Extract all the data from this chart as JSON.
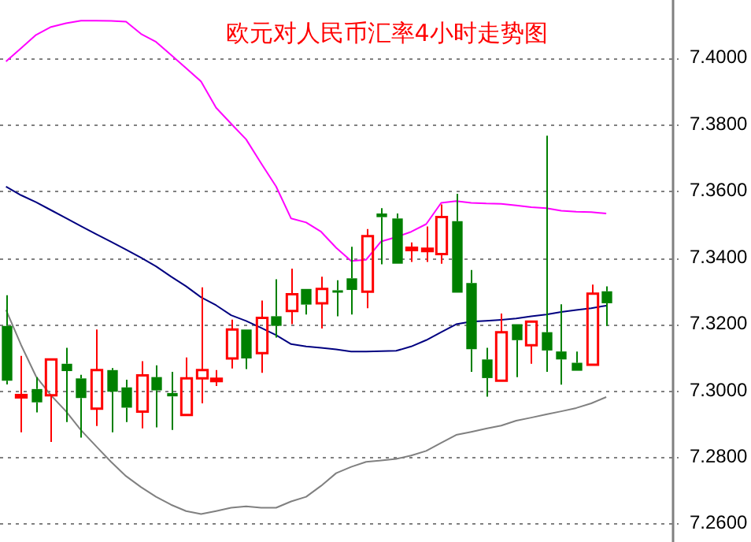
{
  "chart_data": {
    "type": "candlestick",
    "title": "欧元对人民币汇率4小时走势图",
    "categories": [
      null,
      null,
      null,
      null,
      null,
      null,
      null,
      null,
      null,
      null,
      null,
      null,
      null,
      null,
      null,
      null,
      null,
      null,
      null,
      null,
      null,
      null,
      null,
      null,
      null,
      null,
      null,
      null,
      null,
      null,
      null,
      null,
      null,
      null,
      null,
      null,
      null,
      null,
      null,
      null,
      null
    ],
    "ohlc": [
      [
        7.3195,
        7.3287,
        7.3019,
        7.303
      ],
      [
        7.2986,
        7.3105,
        7.2875,
        7.2987
      ],
      [
        7.3005,
        7.3041,
        7.2935,
        7.2965
      ],
      [
        7.2986,
        7.3094,
        7.2846,
        7.3094
      ],
      [
        7.3081,
        7.3129,
        7.2906,
        7.3059
      ],
      [
        7.3037,
        7.3048,
        7.2859,
        7.2978
      ],
      [
        7.2946,
        7.3184,
        7.2894,
        7.3062
      ],
      [
        7.3062,
        7.3068,
        7.2875,
        7.2997
      ],
      [
        7.301,
        7.3033,
        7.2906,
        7.2949
      ],
      [
        7.2937,
        7.3089,
        7.2887,
        7.3046
      ],
      [
        7.3041,
        7.3076,
        7.289,
        7.3001
      ],
      [
        7.2993,
        7.3057,
        7.2882,
        7.2983
      ],
      [
        7.2927,
        7.31,
        7.2927,
        7.3037
      ],
      [
        7.3037,
        7.3311,
        7.2962,
        7.3062
      ],
      [
        7.3033,
        7.3062,
        7.3014,
        7.3036
      ],
      [
        7.3097,
        7.3214,
        7.3067,
        7.3184
      ],
      [
        7.3184,
        7.3184,
        7.3065,
        7.3097
      ],
      [
        7.3113,
        7.3271,
        7.3054,
        7.3219
      ],
      [
        7.3224,
        7.3335,
        7.316,
        7.3195
      ],
      [
        7.324,
        7.3367,
        7.32,
        7.329
      ],
      [
        7.3306,
        7.3306,
        7.3229,
        7.3259
      ],
      [
        7.3263,
        7.3343,
        7.3187,
        7.3306
      ],
      [
        7.3302,
        7.3332,
        7.3224,
        7.3298
      ],
      [
        7.3338,
        7.3433,
        7.3229,
        7.3303
      ],
      [
        7.3298,
        7.3486,
        7.3248,
        7.3465
      ],
      [
        7.3533,
        7.3549,
        7.338,
        7.3522
      ],
      [
        7.3518,
        7.3533,
        7.3382,
        7.3382
      ],
      [
        7.3425,
        7.3446,
        7.3387,
        7.343
      ],
      [
        7.3425,
        7.3494,
        7.3387,
        7.3427
      ],
      [
        7.3411,
        7.356,
        7.3382,
        7.3522
      ],
      [
        7.351,
        7.3592,
        7.3295,
        7.3295
      ],
      [
        7.3324,
        7.3363,
        7.3057,
        7.3125
      ],
      [
        7.3094,
        7.3129,
        7.2982,
        7.3038
      ],
      [
        7.303,
        7.3232,
        7.303,
        7.3176
      ],
      [
        7.32,
        7.32,
        7.3041,
        7.3152
      ],
      [
        7.3137,
        7.3208,
        7.3081,
        7.3208
      ],
      [
        7.3176,
        7.3767,
        7.3057,
        7.3121
      ],
      [
        7.3118,
        7.326,
        7.3018,
        7.3094
      ],
      [
        7.3084,
        7.3118,
        7.306,
        7.306
      ],
      [
        7.3078,
        7.3319,
        7.3078,
        7.3292
      ],
      [
        7.3299,
        7.3314,
        7.3195,
        7.3263
      ]
    ],
    "colors": [
      "#008000",
      "#ff0000",
      "#008000",
      "#ff0000",
      "#008000",
      "#008000",
      "#ff0000",
      "#008000",
      "#008000",
      "#ff0000",
      "#008000",
      "#008000",
      "#ff0000",
      "#ff0000",
      "#ff0000",
      "#ff0000",
      "#008000",
      "#ff0000",
      "#008000",
      "#ff0000",
      "#008000",
      "#ff0000",
      "#008000",
      "#008000",
      "#ff0000",
      "#008000",
      "#008000",
      "#ff0000",
      "#ff0000",
      "#ff0000",
      "#008000",
      "#008000",
      "#008000",
      "#ff0000",
      "#008000",
      "#ff0000",
      "#008000",
      "#008000",
      "#008000",
      "#ff0000",
      "#008000"
    ],
    "series": [
      {
        "type": "line",
        "color": "#ff00ff",
        "values": [
          7.399,
          7.403,
          7.407,
          7.4094,
          7.4105,
          7.4113,
          7.4113,
          7.4112,
          7.411,
          7.4073,
          7.4049,
          7.401,
          7.397,
          7.393,
          7.3851,
          7.3803,
          7.3756,
          7.3684,
          7.3614,
          7.3518,
          7.3506,
          7.3478,
          7.343,
          7.339,
          7.3394,
          7.3449,
          7.3462,
          7.3478,
          7.3501,
          7.3565,
          7.357,
          7.3565,
          7.3563,
          7.3562,
          7.3557,
          7.3552,
          7.3549,
          7.3541,
          7.3538,
          7.3537,
          7.3533
        ]
      },
      {
        "type": "line",
        "color": "#000080",
        "values": [
          7.3614,
          7.3588,
          7.3567,
          7.3543,
          7.3519,
          7.3495,
          7.3471,
          7.3448,
          7.3424,
          7.34,
          7.3374,
          7.3343,
          7.3314,
          7.3281,
          7.3257,
          7.3227,
          7.321,
          7.3189,
          7.3167,
          7.314,
          7.3133,
          7.3129,
          7.3124,
          7.3118,
          7.3118,
          7.3119,
          7.312,
          7.3133,
          7.3152,
          7.3176,
          7.32,
          7.3208,
          7.321,
          7.3213,
          7.3217,
          7.3224,
          7.3229,
          7.3237,
          7.3243,
          7.3248,
          7.3256
        ]
      },
      {
        "type": "line",
        "color": "#808080",
        "values": [
          7.3243,
          7.3138,
          7.3043,
          7.2986,
          7.2938,
          7.2881,
          7.2833,
          7.2786,
          7.2743,
          7.271,
          7.2681,
          7.2657,
          7.2638,
          7.2629,
          7.2638,
          7.2648,
          7.2652,
          7.2648,
          7.2648,
          7.2667,
          7.2681,
          7.2714,
          7.2752,
          7.2771,
          7.2786,
          7.279,
          7.2795,
          7.2805,
          7.2819,
          7.2843,
          7.2867,
          7.2876,
          7.2886,
          7.2895,
          7.291,
          7.2919,
          7.2929,
          7.2938,
          7.2948,
          7.2962,
          7.2981
        ]
      }
    ],
    "ylim": [
      7.2545,
      7.4175
    ],
    "yticks": [
      {
        "value": 7.26,
        "label": "7.2600"
      },
      {
        "value": 7.28,
        "label": "7.2800"
      },
      {
        "value": 7.3,
        "label": "7.3000"
      },
      {
        "value": 7.32,
        "label": "7.3200"
      },
      {
        "value": 7.34,
        "label": "7.3400"
      },
      {
        "value": 7.36,
        "label": "7.3600"
      },
      {
        "value": 7.38,
        "label": "7.3800"
      },
      {
        "value": 7.4,
        "label": "7.4000"
      }
    ],
    "grid": "y",
    "legend": false,
    "tick_labels": "y",
    "marker": "none"
  }
}
